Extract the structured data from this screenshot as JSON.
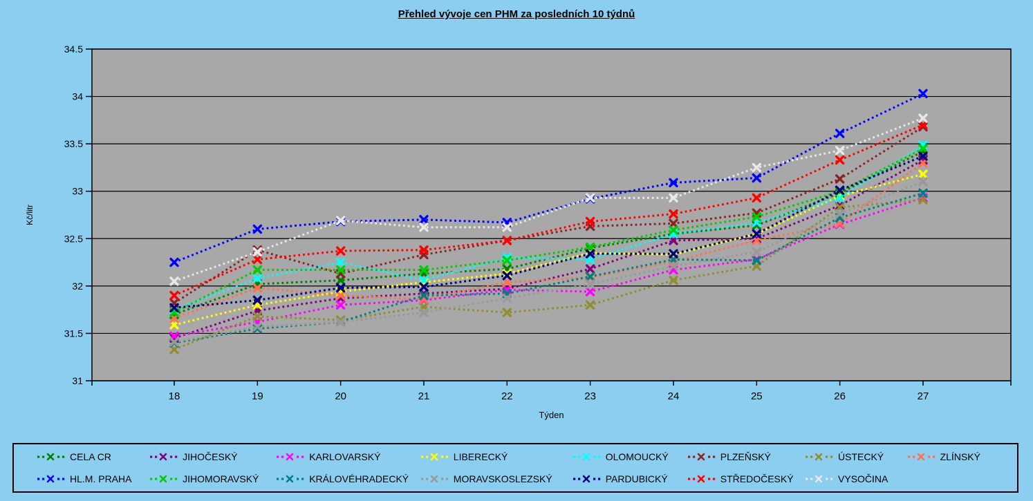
{
  "title": "Přehled vývoje cen PHM za posledních 10 týdnů",
  "colors": {
    "background": "#8CCEF0",
    "plot_background": "#A8A8A8",
    "gridline": "#000000",
    "axis_text": "#000000",
    "legend_border": "#000000"
  },
  "chart_data": {
    "type": "line",
    "title": "Přehled vývoje cen PHM za posledních 10 týdnů",
    "xlabel": "Týden",
    "ylabel": "Kč/litr",
    "x": [
      18,
      19,
      20,
      21,
      22,
      23,
      24,
      25,
      26,
      27
    ],
    "ylim": [
      31,
      34.5
    ],
    "ytick_step": 0.5,
    "grid": true,
    "legend_position": "bottom",
    "line_style": "dotted",
    "marker": "x",
    "series": [
      {
        "name": "CELA CR",
        "color": "#008000",
        "values": [
          31.7,
          32.02,
          32.06,
          32.13,
          32.18,
          32.4,
          32.55,
          32.64,
          32.98,
          33.42
        ]
      },
      {
        "name": "JIHOČESKÝ",
        "color": "#800080",
        "values": [
          31.45,
          31.74,
          31.87,
          31.92,
          31.97,
          32.18,
          32.48,
          32.5,
          32.85,
          33.33
        ]
      },
      {
        "name": "KARLOVARSKÝ",
        "color": "#FF00FF",
        "values": [
          31.47,
          31.62,
          31.8,
          31.85,
          31.96,
          31.94,
          32.17,
          32.28,
          32.65,
          32.93
        ]
      },
      {
        "name": "LIBERECKÝ",
        "color": "#FFFF00",
        "values": [
          31.59,
          31.8,
          31.94,
          32.04,
          32.13,
          32.35,
          32.33,
          32.55,
          32.95,
          33.18
        ]
      },
      {
        "name": "OLOMOUCKÝ",
        "color": "#00FFFF",
        "values": [
          31.75,
          32.08,
          32.25,
          32.06,
          32.3,
          32.28,
          32.55,
          32.67,
          32.93,
          33.49
        ]
      },
      {
        "name": "PLZEŇSKÝ",
        "color": "#8B2323",
        "values": [
          31.82,
          32.38,
          32.13,
          32.33,
          32.48,
          32.63,
          32.66,
          32.77,
          33.13,
          33.68
        ]
      },
      {
        "name": "ÚSTECKÝ",
        "color": "#8F8F30",
        "values": [
          31.33,
          31.68,
          31.64,
          31.78,
          31.72,
          31.8,
          32.06,
          32.21,
          32.83,
          32.91
        ]
      },
      {
        "name": "ZLÍNSKÝ",
        "color": "#FF7050",
        "values": [
          31.66,
          31.98,
          31.9,
          31.86,
          32.04,
          32.09,
          32.26,
          32.48,
          32.66,
          33.3
        ]
      },
      {
        "name": "HL.M. PRAHA",
        "color": "#0000FF",
        "values": [
          32.25,
          32.6,
          32.68,
          32.7,
          32.67,
          32.92,
          33.09,
          33.14,
          33.61,
          34.03
        ]
      },
      {
        "name": "JIHOMORAVSKÝ",
        "color": "#00CC00",
        "values": [
          31.72,
          32.17,
          32.17,
          32.17,
          32.27,
          32.41,
          32.59,
          32.73,
          33.0,
          33.45
        ]
      },
      {
        "name": "KRÁLOVÉHRADECKÝ",
        "color": "#008080",
        "values": [
          31.4,
          31.55,
          31.62,
          31.9,
          31.92,
          32.1,
          32.28,
          32.27,
          32.72,
          32.98
        ]
      },
      {
        "name": "MORAVSKOSLEZSKÝ",
        "color": "#999999",
        "values": [
          31.41,
          31.57,
          31.62,
          31.72,
          31.87,
          32.02,
          32.21,
          32.36,
          32.76,
          33.1
        ]
      },
      {
        "name": "PARDUBICKÝ",
        "color": "#000080",
        "values": [
          31.77,
          31.85,
          31.98,
          31.99,
          32.11,
          32.34,
          32.34,
          32.55,
          33.01,
          33.37
        ]
      },
      {
        "name": "STŘEDOČESKÝ",
        "color": "#FF0000",
        "values": [
          31.9,
          32.28,
          32.37,
          32.38,
          32.48,
          32.68,
          32.76,
          32.93,
          33.33,
          33.7
        ]
      },
      {
        "name": "VYSOČINA",
        "color": "#E8E8E8",
        "values": [
          32.05,
          32.36,
          32.69,
          32.62,
          32.62,
          32.93,
          32.93,
          33.25,
          33.43,
          33.77
        ]
      }
    ]
  }
}
